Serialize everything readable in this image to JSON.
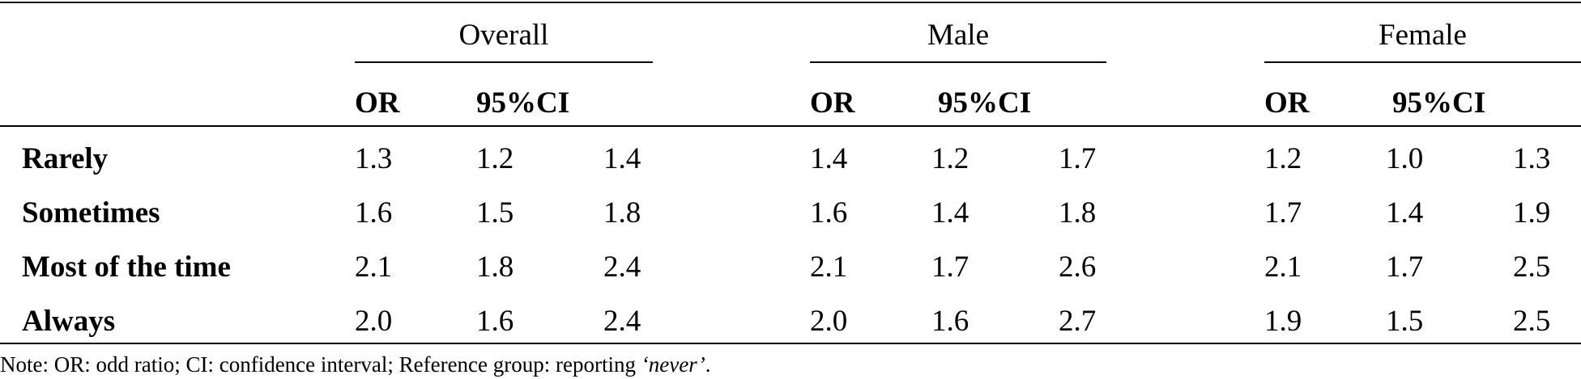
{
  "table": {
    "groups": [
      {
        "name": "Overall",
        "or": "OR",
        "ci": "95%CI"
      },
      {
        "name": "Male",
        "or": "OR",
        "ci": "95%CI"
      },
      {
        "name": "Female",
        "or": "OR",
        "ci": "95%CI"
      }
    ],
    "rows": [
      {
        "label": "Rarely",
        "values": [
          "1.3",
          "1.2",
          "1.4",
          "1.4",
          "1.2",
          "1.7",
          "1.2",
          "1.0",
          "1.3"
        ]
      },
      {
        "label": "Sometimes",
        "values": [
          "1.6",
          "1.5",
          "1.8",
          "1.6",
          "1.4",
          "1.8",
          "1.7",
          "1.4",
          "1.9"
        ]
      },
      {
        "label": "Most of the time",
        "values": [
          "2.1",
          "1.8",
          "2.4",
          "2.1",
          "1.7",
          "2.6",
          "2.1",
          "1.7",
          "2.5"
        ]
      },
      {
        "label": "Always",
        "values": [
          "2.0",
          "1.6",
          "2.4",
          "2.0",
          "1.6",
          "2.7",
          "1.9",
          "1.5",
          "2.5"
        ]
      }
    ],
    "note": {
      "text": "Note: OR: odd ratio; CI: confidence interval; Reference group: reporting ",
      "emphasis": "‘never’",
      "end": "."
    }
  }
}
